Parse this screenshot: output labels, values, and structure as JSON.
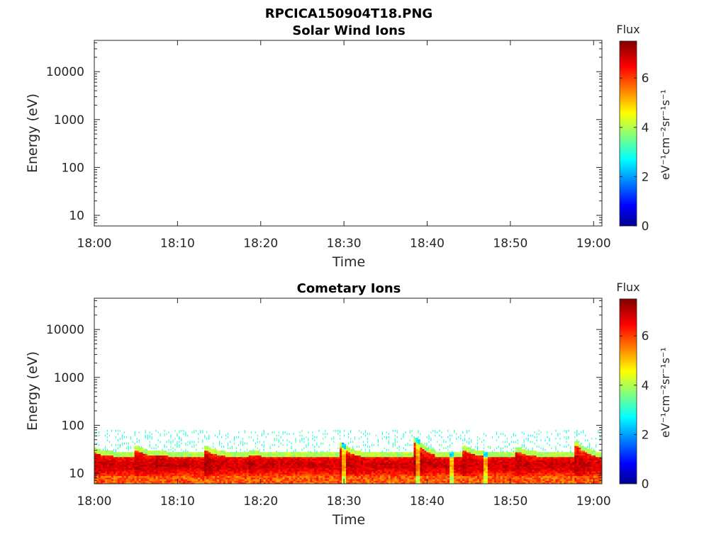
{
  "figure": {
    "title": "RPCICA150904T18.PNG"
  },
  "chart_data": [
    {
      "type": "heatmap",
      "title": "Solar Wind Ions",
      "xlabel": "Time",
      "ylabel": "Energy (eV)",
      "x_ticks": [
        "18:00",
        "18:10",
        "18:20",
        "18:30",
        "18:40",
        "18:50",
        "19:00"
      ],
      "x_range_minutes": [
        0,
        61
      ],
      "y_scale": "log",
      "y_ticks": [
        10,
        100,
        1000,
        10000
      ],
      "y_tick_labels": [
        "10",
        "100",
        "1000",
        "10000"
      ],
      "y_range": [
        6,
        45000
      ],
      "colorbar": {
        "label": "Flux",
        "unit_label": "eV⁻¹cm⁻²sr⁻¹s⁻¹",
        "range": [
          0,
          7.5
        ],
        "ticks": [
          "0",
          "2",
          "4",
          "6"
        ],
        "colormap": "jet"
      },
      "data_note": "empty",
      "bursts": []
    },
    {
      "type": "heatmap",
      "title": "Cometary Ions",
      "xlabel": "Time",
      "ylabel": "Energy (eV)",
      "x_ticks": [
        "18:00",
        "18:10",
        "18:20",
        "18:30",
        "18:40",
        "18:50",
        "19:00"
      ],
      "x_range_minutes": [
        0,
        61
      ],
      "y_scale": "log",
      "y_ticks": [
        10,
        100,
        1000,
        10000
      ],
      "y_tick_labels": [
        "10",
        "100",
        "1000",
        "10000"
      ],
      "y_range": [
        6,
        45000
      ],
      "colorbar": {
        "label": "Flux",
        "unit_label": "eV⁻¹cm⁻²sr⁻¹s⁻¹",
        "range": [
          0,
          7.5
        ],
        "ticks": [
          "0",
          "2",
          "4",
          "6"
        ],
        "colormap": "jet"
      },
      "band": {
        "noise_top_eV": 80,
        "main_top_eV": 28,
        "main_bottom_eV": 6,
        "peak_energy_eV": 15,
        "peak_flux": 6.8
      },
      "bursts": [
        {
          "t_min": 0.0,
          "peak_eV": 35,
          "flux": 6.5
        },
        {
          "t_min": 5.2,
          "peak_eV": 38,
          "flux": 6.5
        },
        {
          "t_min": 7.6,
          "peak_eV": 30,
          "flux": 6.8
        },
        {
          "t_min": 13.5,
          "peak_eV": 38,
          "flux": 7.0
        },
        {
          "t_min": 18.8,
          "peak_eV": 30,
          "flux": 6.5
        },
        {
          "t_min": 29.9,
          "peak_eV": 42,
          "flux": 6.5
        },
        {
          "t_min": 38.8,
          "peak_eV": 55,
          "flux": 6.8
        },
        {
          "t_min": 44.6,
          "peak_eV": 38,
          "flux": 6.5
        },
        {
          "t_min": 51.0,
          "peak_eV": 35,
          "flux": 6.5
        },
        {
          "t_min": 58.0,
          "peak_eV": 48,
          "flux": 6.5
        }
      ],
      "low_flux_gaps_min": [
        29.9,
        38.8,
        43.0,
        47.0
      ]
    }
  ]
}
